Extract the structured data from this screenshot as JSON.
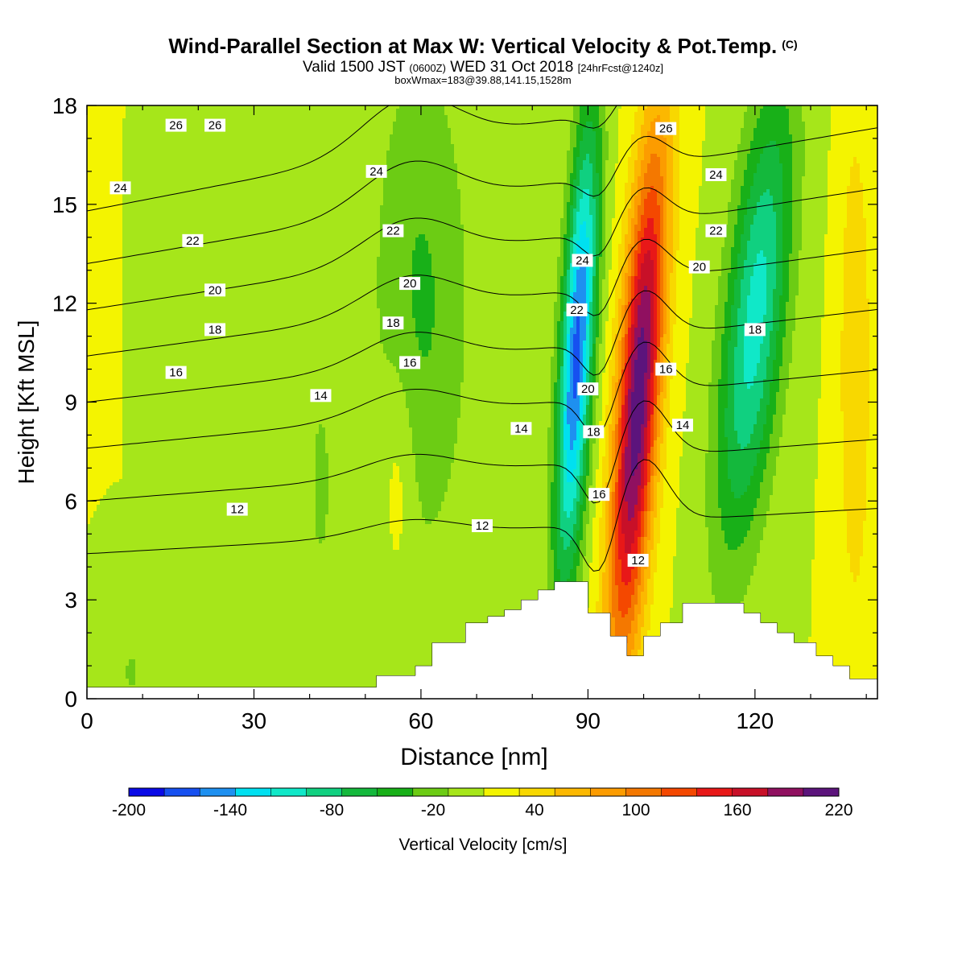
{
  "header": {
    "title": "Wind-Parallel Section at Max W: Vertical Velocity & Pot.Temp.",
    "title_tag": "(C)",
    "subtitle_a": "Valid 1500 JST",
    "subtitle_b": "(0600Z)",
    "subtitle_c": "WED 31 Oct 2018",
    "subtitle_d": "[24hrFcst@1240z]",
    "subtitle2": "boxWmax=183@39.88,141.15,1528m"
  },
  "chart_data": {
    "type": "heatmap",
    "xlabel": "Distance [nm]",
    "ylabel": "Height [Kft MSL]",
    "xlim": [
      0,
      142
    ],
    "ylim": [
      0,
      18
    ],
    "x_ticks": [
      "0",
      "30",
      "60",
      "90",
      "120"
    ],
    "y_ticks": [
      "0",
      "3",
      "6",
      "9",
      "12",
      "15",
      "18"
    ],
    "colorbar": {
      "title": "Vertical Velocity [cm/s]",
      "tick_labels": [
        "-200",
        "-140",
        "-80",
        "-20",
        "40",
        "100",
        "160",
        "220"
      ],
      "colors": [
        "#0a0ae6",
        "#1650f0",
        "#1e90f0",
        "#00e0f0",
        "#10e8c8",
        "#10d080",
        "#14b83c",
        "#18b018",
        "#6ccc14",
        "#a6e61a",
        "#f4f400",
        "#f8d800",
        "#fcb800",
        "#fc9c00",
        "#f47800",
        "#f44800",
        "#e81818",
        "#c81028",
        "#901060",
        "#5c147c"
      ]
    },
    "w_field": {
      "description_units": "cm/s",
      "features": [
        {
          "x": 88,
          "z": 10.5,
          "value": -175,
          "sx": 3,
          "sz": 7,
          "tilt": 0.32
        },
        {
          "x": 99,
          "z": 9.0,
          "value": 205,
          "sx": 3.8,
          "sz": 8,
          "tilt": 0.4
        },
        {
          "x": 120,
          "z": 11.5,
          "value": -115,
          "sx": 5.5,
          "sz": 7,
          "tilt": 0.55
        },
        {
          "x": 60,
          "z": 12.0,
          "value": -45,
          "sx": 9,
          "sz": 8,
          "tilt": 0
        },
        {
          "x": 42,
          "z": 6.5,
          "value": -30,
          "sx": 2,
          "sz": 3,
          "tilt": 0
        },
        {
          "x": 56,
          "z": 7.0,
          "value": 25,
          "sx": 3,
          "sz": 3.5,
          "tilt": 0
        },
        {
          "x": 138,
          "z": 10.0,
          "value": 40,
          "sx": 3,
          "sz": 8,
          "tilt": 0
        },
        {
          "x": 8,
          "z": 0.8,
          "value": -25,
          "sx": 2,
          "sz": 1,
          "tilt": 0
        }
      ]
    },
    "terrain_kft": [
      [
        0,
        0.35
      ],
      [
        52,
        0.35
      ],
      [
        52,
        0.7
      ],
      [
        59,
        0.7
      ],
      [
        59,
        1.0
      ],
      [
        62,
        1.0
      ],
      [
        62,
        1.7
      ],
      [
        68,
        1.7
      ],
      [
        68,
        2.3
      ],
      [
        72,
        2.3
      ],
      [
        72,
        2.5
      ],
      [
        75,
        2.5
      ],
      [
        75,
        2.7
      ],
      [
        78,
        2.7
      ],
      [
        78,
        3.0
      ],
      [
        81,
        3.0
      ],
      [
        81,
        3.3
      ],
      [
        84,
        3.3
      ],
      [
        84,
        3.55
      ],
      [
        90,
        3.55
      ],
      [
        90,
        2.6
      ],
      [
        94,
        2.6
      ],
      [
        94,
        1.9
      ],
      [
        97,
        1.9
      ],
      [
        97,
        1.3
      ],
      [
        100,
        1.3
      ],
      [
        100,
        1.9
      ],
      [
        103,
        1.9
      ],
      [
        103,
        2.3
      ],
      [
        107,
        2.3
      ],
      [
        107,
        2.9
      ],
      [
        118,
        2.9
      ],
      [
        118,
        2.6
      ],
      [
        121,
        2.6
      ],
      [
        121,
        2.3
      ],
      [
        124,
        2.3
      ],
      [
        124,
        2.0
      ],
      [
        127,
        2.0
      ],
      [
        127,
        1.7
      ],
      [
        131,
        1.7
      ],
      [
        131,
        1.3
      ],
      [
        134,
        1.3
      ],
      [
        134,
        1.0
      ],
      [
        137,
        1.0
      ],
      [
        137,
        0.6
      ],
      [
        142,
        0.6
      ]
    ],
    "theta_contours": [
      {
        "base": 4.4,
        "label": "12",
        "labels_at": [
          [
            27,
            5.75
          ],
          [
            71,
            5.25
          ],
          [
            99,
            4.2
          ]
        ]
      },
      {
        "base": 6.0,
        "label": "14",
        "labels_at": [
          [
            42,
            9.2
          ],
          [
            78,
            8.2
          ],
          [
            107,
            8.3
          ]
        ]
      },
      {
        "base": 7.6,
        "label": "16",
        "labels_at": [
          [
            16,
            9.9
          ],
          [
            58,
            10.2
          ],
          [
            92,
            6.2
          ],
          [
            104,
            10.0
          ]
        ]
      },
      {
        "base": 9.0,
        "label": "18",
        "labels_at": [
          [
            23,
            11.2
          ],
          [
            55,
            11.4
          ],
          [
            91,
            8.1
          ],
          [
            120,
            11.2
          ]
        ]
      },
      {
        "base": 10.4,
        "label": "20",
        "labels_at": [
          [
            23,
            12.4
          ],
          [
            58,
            12.6
          ],
          [
            90,
            9.4
          ],
          [
            110,
            13.1
          ]
        ]
      },
      {
        "base": 11.8,
        "label": "22",
        "labels_at": [
          [
            19,
            13.9
          ],
          [
            55,
            14.2
          ],
          [
            88,
            11.8
          ],
          [
            113,
            14.2
          ]
        ]
      },
      {
        "base": 13.2,
        "label": "24",
        "labels_at": [
          [
            6,
            15.5
          ],
          [
            52,
            16.0
          ],
          [
            89,
            13.3
          ],
          [
            113,
            15.9
          ]
        ]
      },
      {
        "base": 14.8,
        "label": "26",
        "labels_at": [
          [
            16,
            17.4
          ],
          [
            23,
            17.4
          ],
          [
            104,
            17.3
          ]
        ]
      }
    ]
  }
}
